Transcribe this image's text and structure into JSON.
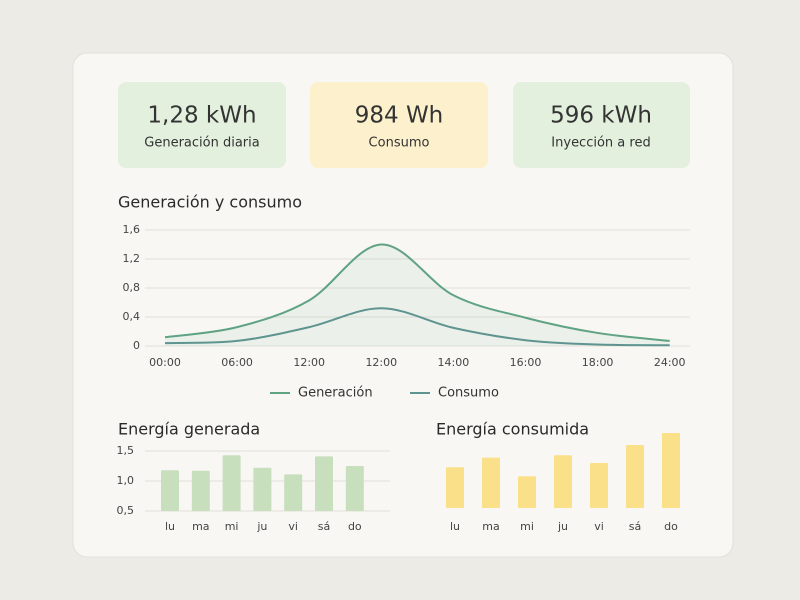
{
  "kpis": [
    {
      "value": "1,28 kWh",
      "label": "Generación diaria"
    },
    {
      "value": "984 Wh",
      "label": "Consumo"
    },
    {
      "value": "596 kWh",
      "label": "Inyección a red"
    }
  ],
  "chart_data": [
    {
      "type": "line",
      "title": "Generación y consumo",
      "categories": [
        "00:00",
        "06:00",
        "12:00",
        "12:00",
        "14:00",
        "16:00",
        "18:00",
        "24:00"
      ],
      "series": [
        {
          "name": "Generación",
          "color": "#5fa383",
          "values": [
            0.12,
            0.26,
            0.63,
            1.4,
            0.7,
            0.39,
            0.18,
            0.07
          ]
        },
        {
          "name": "Consumo",
          "color": "#5f9490",
          "values": [
            0.04,
            0.07,
            0.26,
            0.52,
            0.25,
            0.08,
            0.02,
            0.01
          ]
        }
      ],
      "ylim": [
        0,
        1.6
      ],
      "yticks": [
        0,
        {
          "value": 0.4,
          "label": "0,4"
        },
        {
          "value": 0.8,
          "label": "0,8"
        },
        {
          "value": 1.2,
          "label": "1,2"
        },
        {
          "value": 1.6,
          "label": "1,6"
        }
      ],
      "grid": true,
      "legend": "bottom"
    },
    {
      "type": "bar",
      "title": "Energía generada",
      "categories": [
        "lu",
        "ma",
        "mi",
        "ju",
        "vi",
        "sá",
        "do"
      ],
      "values": [
        1.18,
        1.17,
        1.43,
        1.22,
        1.11,
        1.41,
        1.25
      ],
      "color": "#c8dfbe",
      "ylim": [
        0.5,
        1.6
      ],
      "yticks": [
        {
          "value": 0.5,
          "label": "0,5"
        },
        {
          "value": 1.0,
          "label": "1,0"
        },
        {
          "value": 1.5,
          "label": "1,5"
        }
      ],
      "grid": true
    },
    {
      "type": "bar",
      "title": "Energía consumida",
      "categories": [
        "lu",
        "ma",
        "mi",
        "ju",
        "vi",
        "sá",
        "do"
      ],
      "values": [
        1.18,
        1.34,
        1.03,
        1.38,
        1.25,
        1.55,
        1.75
      ],
      "color": "#fbe08a",
      "ylim": [
        0.5,
        1.8
      ],
      "yticks": [],
      "grid": false
    }
  ]
}
